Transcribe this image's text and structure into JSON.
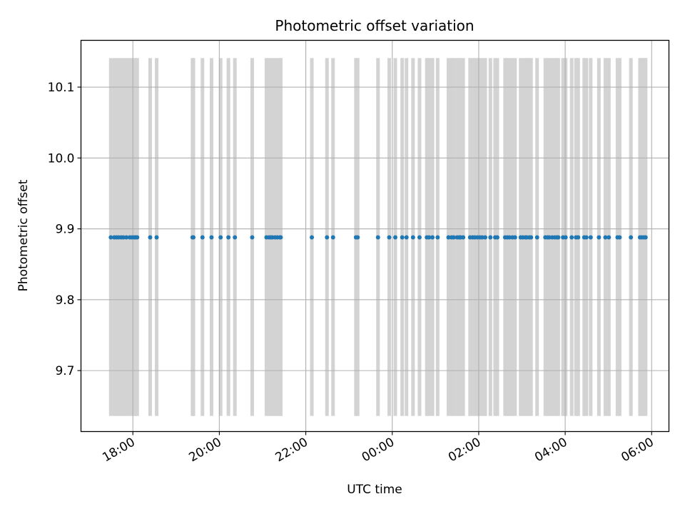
{
  "chart_data": {
    "type": "scatter",
    "title": "Photometric offset variation",
    "xlabel": "UTC time",
    "ylabel": "Photometric offset",
    "x_axis": {
      "unit": "hours since 00:00 (negative = previous evening)",
      "range": [
        -7.2,
        6.4
      ],
      "ticks": [
        {
          "value": -6,
          "label": "18:00"
        },
        {
          "value": -4,
          "label": "20:00"
        },
        {
          "value": -2,
          "label": "22:00"
        },
        {
          "value": 0,
          "label": "00:00"
        },
        {
          "value": 2,
          "label": "02:00"
        },
        {
          "value": 4,
          "label": "04:00"
        },
        {
          "value": 6,
          "label": "06:00"
        }
      ]
    },
    "y_axis": {
      "range": [
        9.614,
        10.166
      ],
      "ticks": [
        {
          "value": 9.7,
          "label": "9.7"
        },
        {
          "value": 9.8,
          "label": "9.8"
        },
        {
          "value": 9.9,
          "label": "9.9"
        },
        {
          "value": 10.0,
          "label": "10.0"
        },
        {
          "value": 10.1,
          "label": "10.1"
        }
      ]
    },
    "grid": true,
    "shaded_band": {
      "y_min": 9.636,
      "y_max": 10.141,
      "color": "#d3d3d3"
    },
    "series": [
      {
        "color": "#1f77b4",
        "y_value": 9.888,
        "x": [
          -6.51,
          -6.43,
          -6.38,
          -6.33,
          -6.27,
          -6.22,
          -6.15,
          -6.07,
          -6.02,
          -5.97,
          -5.94,
          -5.9,
          -5.6,
          -5.45,
          -4.62,
          -4.6,
          -4.39,
          -4.18,
          -3.97,
          -3.79,
          -3.64,
          -3.24,
          -2.91,
          -2.85,
          -2.81,
          -2.77,
          -2.71,
          -2.66,
          -2.6,
          -2.58,
          -1.86,
          -1.51,
          -1.37,
          -0.84,
          -0.8,
          -0.33,
          -0.07,
          0.07,
          0.23,
          0.33,
          0.48,
          0.63,
          0.8,
          0.85,
          0.93,
          1.05,
          1.3,
          1.37,
          1.42,
          1.5,
          1.55,
          1.58,
          1.64,
          1.8,
          1.86,
          1.91,
          1.97,
          2.03,
          2.08,
          2.15,
          2.27,
          2.38,
          2.43,
          2.61,
          2.66,
          2.71,
          2.78,
          2.84,
          2.97,
          3.02,
          3.08,
          3.11,
          3.17,
          3.21,
          3.35,
          3.54,
          3.59,
          3.63,
          3.7,
          3.76,
          3.81,
          3.84,
          3.95,
          4.01,
          4.15,
          4.25,
          4.3,
          4.44,
          4.49,
          4.59,
          4.78,
          4.93,
          5.01,
          5.21,
          5.26,
          5.52,
          5.73,
          5.77,
          5.82,
          5.86
        ]
      }
    ]
  }
}
